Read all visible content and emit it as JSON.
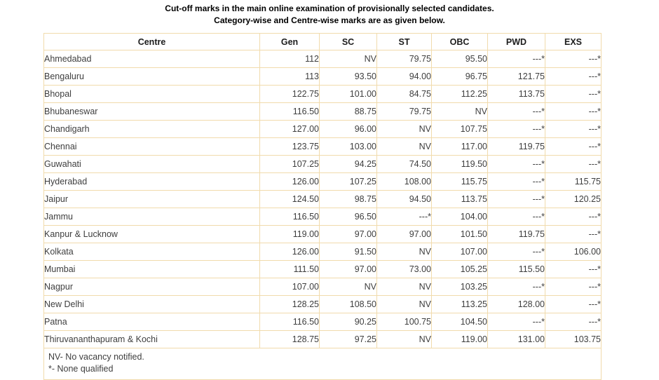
{
  "colors": {
    "border": "#f1dbac",
    "header_text": "#1c1c1c",
    "cell_text": "#3e3e3e",
    "title_text": "#000000",
    "page_bg": "#ffffff"
  },
  "page": {
    "title_line1": "Cut-off marks in the main online examination of provisionally selected candidates.",
    "title_line2": "Category-wise and Centre-wise marks are as given below."
  },
  "table": {
    "columns": [
      "Centre",
      "Gen",
      "SC",
      "ST",
      "OBC",
      "PWD",
      "EXS"
    ],
    "rows": [
      {
        "centre": "Ahmedabad",
        "values": [
          "112",
          "NV",
          "79.75",
          "95.50",
          "---*",
          "---*"
        ]
      },
      {
        "centre": "Bengaluru",
        "values": [
          "113",
          "93.50",
          "94.00",
          "96.75",
          "121.75",
          "---*"
        ]
      },
      {
        "centre": "Bhopal",
        "values": [
          "122.75",
          "101.00",
          "84.75",
          "112.25",
          "113.75",
          "---*"
        ]
      },
      {
        "centre": "Bhubaneswar",
        "values": [
          "116.50",
          "88.75",
          "79.75",
          "NV",
          "---*",
          "---*"
        ]
      },
      {
        "centre": "Chandigarh",
        "values": [
          "127.00",
          "96.00",
          "NV",
          "107.75",
          "---*",
          "---*"
        ]
      },
      {
        "centre": "Chennai",
        "values": [
          "123.75",
          "103.00",
          "NV",
          "117.00",
          "119.75",
          "---*"
        ]
      },
      {
        "centre": "Guwahati",
        "values": [
          "107.25",
          "94.25",
          "74.50",
          "119.50",
          "---*",
          "---*"
        ]
      },
      {
        "centre": "Hyderabad",
        "values": [
          "126.00",
          "107.25",
          "108.00",
          "115.75",
          "---*",
          "115.75"
        ]
      },
      {
        "centre": "Jaipur",
        "values": [
          "124.50",
          "98.75",
          "94.50",
          "113.75",
          "---*",
          "120.25"
        ]
      },
      {
        "centre": "Jammu",
        "values": [
          "116.50",
          "96.50",
          "---*",
          "104.00",
          "---*",
          "---*"
        ]
      },
      {
        "centre": "Kanpur & Lucknow",
        "values": [
          "119.00",
          "97.00",
          "97.00",
          "101.50",
          "119.75",
          "---*"
        ]
      },
      {
        "centre": "Kolkata",
        "values": [
          "126.00",
          "91.50",
          "NV",
          "107.00",
          "---*",
          "106.00"
        ]
      },
      {
        "centre": "Mumbai",
        "values": [
          "111.50",
          "97.00",
          "73.00",
          "105.25",
          "115.50",
          "---*"
        ]
      },
      {
        "centre": "Nagpur",
        "values": [
          "107.00",
          "NV",
          "NV",
          "103.25",
          "---*",
          "---*"
        ]
      },
      {
        "centre": "New Delhi",
        "values": [
          "128.25",
          "108.50",
          "NV",
          "113.25",
          "128.00",
          "---*"
        ]
      },
      {
        "centre": "Patna",
        "values": [
          "116.50",
          "90.25",
          "100.75",
          "104.50",
          "---*",
          "---*"
        ]
      },
      {
        "centre": "Thiruvananthapuram & Kochi",
        "values": [
          "128.75",
          "97.25",
          "NV",
          "119.00",
          "131.00",
          "103.75"
        ]
      }
    ],
    "notes": [
      "NV- No vacancy notified.",
      "*- None qualified"
    ]
  }
}
